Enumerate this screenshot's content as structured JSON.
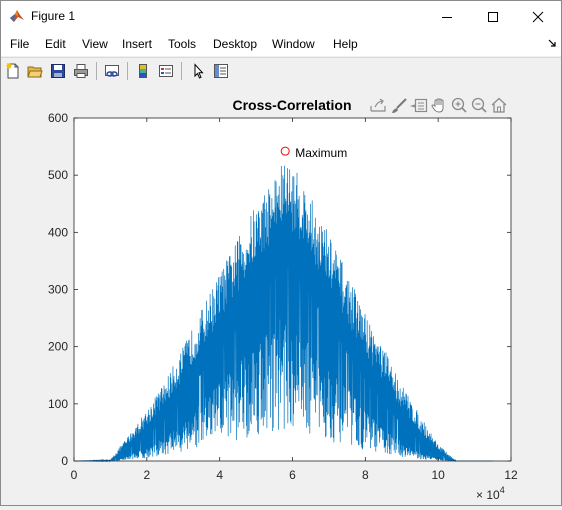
{
  "window": {
    "title": "Figure 1"
  },
  "menu": {
    "items": [
      "File",
      "Edit",
      "View",
      "Insert",
      "Tools",
      "Desktop",
      "Window",
      "Help"
    ]
  },
  "toolbar": {
    "buttons": [
      "new-figure-icon",
      "open-file-icon",
      "save-icon",
      "print-icon",
      "link-plot-icon",
      "colorbar-icon",
      "legend-icon",
      "pointer-icon",
      "property-inspector-icon"
    ]
  },
  "axes_toolbar": {
    "buttons": [
      "export-icon",
      "brush-icon",
      "data-tips-icon",
      "pan-icon",
      "zoom-in-icon",
      "zoom-out-icon",
      "home-icon"
    ]
  },
  "chart_data": {
    "type": "line",
    "title": "Cross-Correlation",
    "xlabel": "",
    "ylabel": "",
    "x_exponent_label": "× 10^4",
    "xlim": [
      0,
      12
    ],
    "ylim": [
      0,
      600
    ],
    "xticks": [
      0,
      2,
      4,
      6,
      8,
      10,
      12
    ],
    "yticks": [
      0,
      100,
      200,
      300,
      400,
      500,
      600
    ],
    "grid": false,
    "color": "#0072bd",
    "envelope": {
      "x": [
        0,
        1.0,
        1.2,
        1.5,
        2.0,
        2.5,
        3.0,
        3.5,
        4.0,
        4.5,
        5.0,
        5.4,
        5.8,
        6.2,
        6.6,
        7.0,
        7.5,
        8.0,
        8.5,
        9.0,
        9.5,
        10.0,
        10.4,
        10.5,
        11.5
      ],
      "upper": [
        0,
        2,
        20,
        45,
        90,
        140,
        200,
        265,
        330,
        390,
        450,
        490,
        530,
        500,
        450,
        400,
        330,
        260,
        200,
        135,
        80,
        30,
        5,
        0,
        0
      ],
      "lower": [
        0,
        0,
        2,
        10,
        25,
        45,
        75,
        110,
        145,
        180,
        220,
        250,
        270,
        250,
        215,
        175,
        135,
        95,
        60,
        35,
        15,
        5,
        0,
        0,
        0
      ]
    },
    "annotation": {
      "label": "Maximum",
      "x": 5.8,
      "y": 542,
      "marker": "circle",
      "marker_color": "#ff0000"
    }
  }
}
